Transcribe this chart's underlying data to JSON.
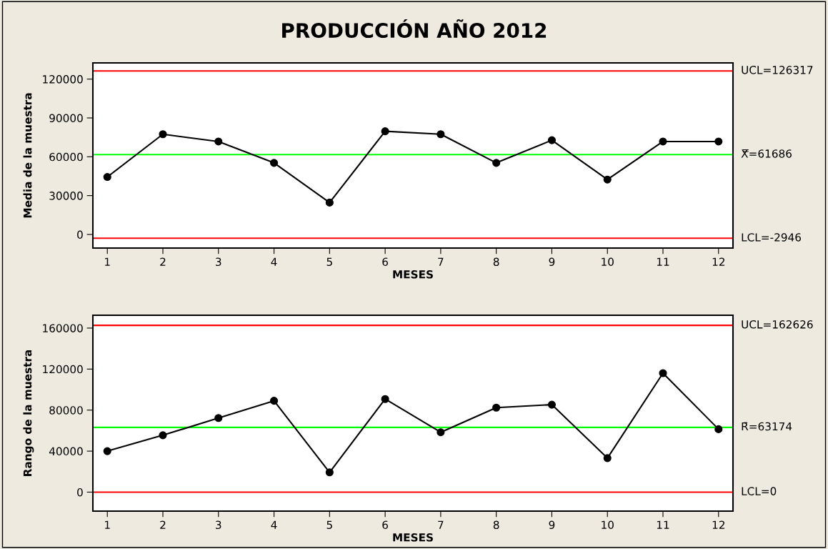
{
  "chart_data": [
    {
      "type": "line",
      "title": "PRODUCCIÓN AÑO 2012",
      "xlabel": "MESES",
      "ylabel": "Media de la muestra",
      "x": [
        1,
        2,
        3,
        4,
        5,
        6,
        7,
        8,
        9,
        10,
        11,
        12
      ],
      "series": [
        {
          "color": "#000000",
          "values": [
            44400,
            77400,
            71800,
            55300,
            24600,
            79700,
            77400,
            55300,
            72800,
            42400,
            71800,
            71800
          ]
        }
      ],
      "xlim": [
        0.74,
        12.26
      ],
      "xticks": [
        1,
        2,
        3,
        4,
        5,
        6,
        7,
        8,
        9,
        10,
        11,
        12
      ],
      "ylim": [
        -10500,
        132500
      ],
      "yticks": [
        0,
        30000,
        60000,
        90000,
        120000
      ],
      "marker": "circle",
      "line_style": "solid",
      "grid": false,
      "legend": false,
      "ref_lines": [
        {
          "axis": "y",
          "value": 126317,
          "label": "UCL=126317",
          "color": "#ff0000"
        },
        {
          "axis": "y",
          "value": 61686,
          "label": "X̿=61686",
          "color": "#00ff00"
        },
        {
          "axis": "y",
          "value": -2946,
          "label": "LCL=-2946",
          "color": "#ff0000"
        }
      ]
    },
    {
      "type": "line",
      "xlabel": "MESES",
      "ylabel": "Rango de la muestra",
      "x": [
        1,
        2,
        3,
        4,
        5,
        6,
        7,
        8,
        9,
        10,
        11,
        12
      ],
      "series": [
        {
          "color": "#000000",
          "values": [
            40000,
            55500,
            72300,
            89100,
            19300,
            90800,
            58400,
            82400,
            85300,
            33200,
            116000,
            61400
          ]
        }
      ],
      "xlim": [
        0.74,
        12.26
      ],
      "xticks": [
        1,
        2,
        3,
        4,
        5,
        6,
        7,
        8,
        9,
        10,
        11,
        12
      ],
      "ylim": [
        -18500,
        172500
      ],
      "yticks": [
        0,
        40000,
        80000,
        120000,
        160000
      ],
      "marker": "circle",
      "line_style": "solid",
      "grid": false,
      "legend": false,
      "ref_lines": [
        {
          "axis": "y",
          "value": 162626,
          "label": "UCL=162626",
          "color": "#ff0000"
        },
        {
          "axis": "y",
          "value": 63174,
          "label": "R̄=63174",
          "color": "#00ff00"
        },
        {
          "axis": "y",
          "value": 0,
          "label": "LCL=0",
          "color": "#ff0000"
        }
      ]
    }
  ]
}
